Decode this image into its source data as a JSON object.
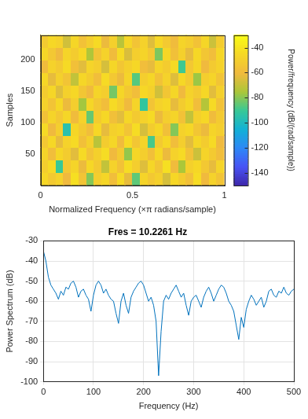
{
  "chart_data": [
    {
      "type": "heatmap",
      "x_label": "Normalized Frequency (×π radians/sample)",
      "y_label": "Samples",
      "xlim": [
        0,
        1
      ],
      "xticks": [
        0,
        0.5,
        1
      ],
      "ylim": [
        0,
        240
      ],
      "yticks": [
        50,
        100,
        150,
        200
      ],
      "grid": false,
      "z": [
        [
          -45,
          -52,
          -48,
          -60,
          -42,
          -55,
          -80,
          -50,
          -46,
          -58,
          -44,
          -62,
          -85,
          -47,
          -53,
          -49,
          -66,
          -45,
          -51,
          -57,
          -43,
          -60,
          -48,
          -55
        ],
        [
          -50,
          -44,
          -90,
          -53,
          -47,
          -61,
          -45,
          -52,
          -70,
          -48,
          -56,
          -43,
          -50,
          -64,
          -46,
          -54,
          -42,
          -59,
          -75,
          -49,
          -45,
          -53,
          -62,
          -47
        ],
        [
          -47,
          -58,
          -46,
          -51,
          -63,
          -44,
          -55,
          -49,
          -43,
          -60,
          -52,
          -78,
          -46,
          -50,
          -57,
          -45,
          -61,
          -48,
          -44,
          -56,
          -68,
          -47,
          -52,
          -58
        ],
        [
          -53,
          -45,
          -62,
          -48,
          -44,
          -57,
          -49,
          -72,
          -51,
          -46,
          -59,
          -44,
          -54,
          -47,
          -88,
          -52,
          -45,
          -58,
          -50,
          -63,
          -46,
          -51,
          -44,
          -60
        ],
        [
          -44,
          -60,
          -50,
          -95,
          -46,
          -52,
          -58,
          -45,
          -62,
          -49,
          -47,
          -55,
          -43,
          -66,
          -51,
          -46,
          -57,
          -80,
          -48,
          -45,
          -54,
          -61,
          -47,
          -50
        ],
        [
          -56,
          -47,
          -53,
          -46,
          -59,
          -48,
          -84,
          -51,
          -45,
          -57,
          -63,
          -46,
          -52,
          -48,
          -44,
          -61,
          -50,
          -47,
          -56,
          -70,
          -49,
          -45,
          -59,
          -52
        ],
        [
          -48,
          -55,
          -45,
          -61,
          -50,
          -76,
          -46,
          -53,
          -58,
          -44,
          -50,
          -60,
          -47,
          -92,
          -55,
          -48,
          -45,
          -62,
          -51,
          -46,
          -58,
          -73,
          -44,
          -56
        ],
        [
          -51,
          -46,
          -64,
          -49,
          -45,
          -54,
          -60,
          -47,
          -50,
          -82,
          -46,
          -53,
          -58,
          -45,
          -49,
          -67,
          -54,
          -46,
          -60,
          -48,
          -52,
          -45,
          -63,
          -49
        ],
        [
          -45,
          -62,
          -49,
          -55,
          -70,
          -46,
          -51,
          -58,
          -44,
          -53,
          -61,
          -47,
          -86,
          -50,
          -46,
          -56,
          -48,
          -64,
          -45,
          -52,
          -77,
          -50,
          -47,
          -55
        ],
        [
          -59,
          -48,
          -52,
          -44,
          -57,
          -63,
          -47,
          -50,
          -66,
          -46,
          -54,
          -49,
          -45,
          -58,
          -62,
          -47,
          -51,
          -44,
          -89,
          -53,
          -46,
          -60,
          -52,
          -48
        ],
        [
          -46,
          -53,
          -60,
          -47,
          -51,
          -45,
          -74,
          -55,
          -48,
          -59,
          -44,
          -65,
          -50,
          -47,
          -53,
          -81,
          -46,
          -57,
          -49,
          -62,
          -45,
          -54,
          -58,
          -46
        ],
        [
          -52,
          -45,
          -48,
          -67,
          -46,
          -56,
          -50,
          -44,
          -61,
          -49,
          -72,
          -46,
          -55,
          -48,
          -64,
          -45,
          -52,
          -59,
          -47,
          -50,
          -56,
          -46,
          -68,
          -51
        ]
      ],
      "colorbar": {
        "label": "Power/frequency (dB/(rad/sample))",
        "range": [
          -150,
          -30
        ],
        "ticks": [
          -140,
          -120,
          -100,
          -80,
          -60,
          -40
        ]
      }
    },
    {
      "type": "line",
      "title": "Fres = 10.2261 Hz",
      "x_label": "Frequency (Hz)",
      "y_label": "Power Spectrum (dB)",
      "color": "#0072bd",
      "grid": true,
      "xlim": [
        0,
        500
      ],
      "xticks": [
        0,
        100,
        200,
        300,
        400,
        500
      ],
      "ylim": [
        -100,
        -30
      ],
      "yticks": [
        -100,
        -90,
        -80,
        -70,
        -60,
        -50,
        -40,
        -30
      ],
      "x": [
        0,
        5,
        10,
        15,
        20,
        25,
        30,
        35,
        40,
        45,
        50,
        55,
        60,
        65,
        70,
        75,
        80,
        85,
        90,
        95,
        100,
        105,
        110,
        115,
        120,
        125,
        130,
        135,
        140,
        145,
        150,
        155,
        160,
        165,
        170,
        175,
        180,
        185,
        190,
        195,
        200,
        205,
        210,
        215,
        220,
        225,
        230,
        235,
        240,
        245,
        250,
        255,
        260,
        265,
        270,
        275,
        280,
        285,
        290,
        295,
        300,
        305,
        310,
        315,
        320,
        325,
        330,
        335,
        340,
        345,
        350,
        355,
        360,
        365,
        370,
        375,
        380,
        385,
        390,
        395,
        400,
        405,
        410,
        415,
        420,
        425,
        430,
        435,
        440,
        445,
        450,
        455,
        460,
        465,
        470,
        475,
        480,
        485,
        490,
        495,
        500
      ],
      "values": [
        -35,
        -40,
        -48,
        -52,
        -54,
        -56,
        -59,
        -55,
        -57,
        -53,
        -54,
        -51,
        -50,
        -53,
        -58,
        -55,
        -54,
        -57,
        -59,
        -65,
        -57,
        -52,
        -50,
        -52,
        -56,
        -54,
        -57,
        -59,
        -60,
        -66,
        -71,
        -60,
        -56,
        -62,
        -66,
        -58,
        -55,
        -53,
        -51,
        -50,
        -52,
        -56,
        -60,
        -58,
        -62,
        -70,
        -97,
        -75,
        -60,
        -57,
        -59,
        -56,
        -54,
        -52,
        -55,
        -58,
        -56,
        -62,
        -67,
        -60,
        -58,
        -57,
        -60,
        -63,
        -58,
        -55,
        -53,
        -56,
        -60,
        -57,
        -54,
        -52,
        -53,
        -56,
        -60,
        -62,
        -65,
        -72,
        -79,
        -68,
        -73,
        -64,
        -60,
        -57,
        -59,
        -62,
        -60,
        -58,
        -63,
        -60,
        -55,
        -54,
        -57,
        -58,
        -55,
        -56,
        -53,
        -56,
        -57,
        -55,
        -54
      ]
    }
  ]
}
